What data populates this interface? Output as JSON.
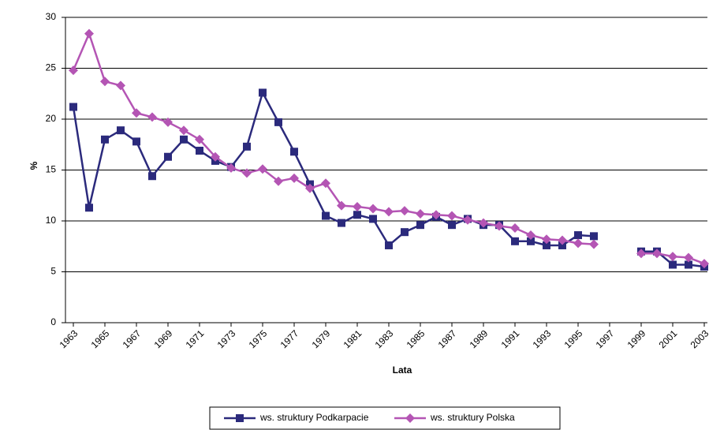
{
  "chart_data": {
    "type": "line",
    "x_label": "Lata",
    "y_label": "%",
    "x": [
      1963,
      1964,
      1965,
      1966,
      1967,
      1968,
      1969,
      1970,
      1971,
      1972,
      1973,
      1974,
      1975,
      1976,
      1977,
      1978,
      1979,
      1980,
      1981,
      1982,
      1983,
      1984,
      1985,
      1986,
      1987,
      1988,
      1989,
      1990,
      1991,
      1992,
      1993,
      1994,
      1995,
      1996,
      1997,
      1998,
      1999,
      2000,
      2001,
      2002,
      2003
    ],
    "xlim": [
      1962.5,
      2003.2
    ],
    "xticks": [
      1963,
      1965,
      1967,
      1969,
      1971,
      1973,
      1975,
      1977,
      1979,
      1981,
      1983,
      1985,
      1987,
      1989,
      1991,
      1993,
      1995,
      1997,
      1999,
      2001,
      2003
    ],
    "ylim": [
      0,
      30
    ],
    "yticks": [
      0,
      5,
      10,
      15,
      20,
      25,
      30
    ],
    "grid": true,
    "series": [
      {
        "name": "ws. struktury Podkarpacie",
        "color": "#2b2a7c",
        "marker": "square",
        "values": [
          21.2,
          11.3,
          18.0,
          18.9,
          17.8,
          14.4,
          16.3,
          18.0,
          16.9,
          15.9,
          15.3,
          17.3,
          22.6,
          19.7,
          16.8,
          13.6,
          10.5,
          9.8,
          10.6,
          10.2,
          7.6,
          8.9,
          9.6,
          10.4,
          9.6,
          10.2,
          9.6,
          9.6,
          8.0,
          8.0,
          7.6,
          7.6,
          8.6,
          8.5,
          null,
          null,
          7.0,
          7.0,
          5.7,
          5.7,
          5.5
        ]
      },
      {
        "name": "ws. struktury Polska",
        "color": "#b455b4",
        "marker": "diamond",
        "values": [
          24.8,
          28.4,
          23.7,
          23.3,
          20.6,
          20.2,
          19.7,
          18.9,
          18.0,
          16.3,
          15.2,
          14.7,
          15.1,
          13.9,
          14.2,
          13.2,
          13.7,
          11.5,
          11.4,
          11.2,
          10.9,
          11.0,
          10.7,
          10.6,
          10.5,
          10.1,
          9.8,
          9.5,
          9.3,
          8.6,
          8.2,
          8.1,
          7.8,
          7.7,
          null,
          null,
          6.8,
          6.8,
          6.5,
          6.4,
          5.8
        ]
      }
    ]
  }
}
